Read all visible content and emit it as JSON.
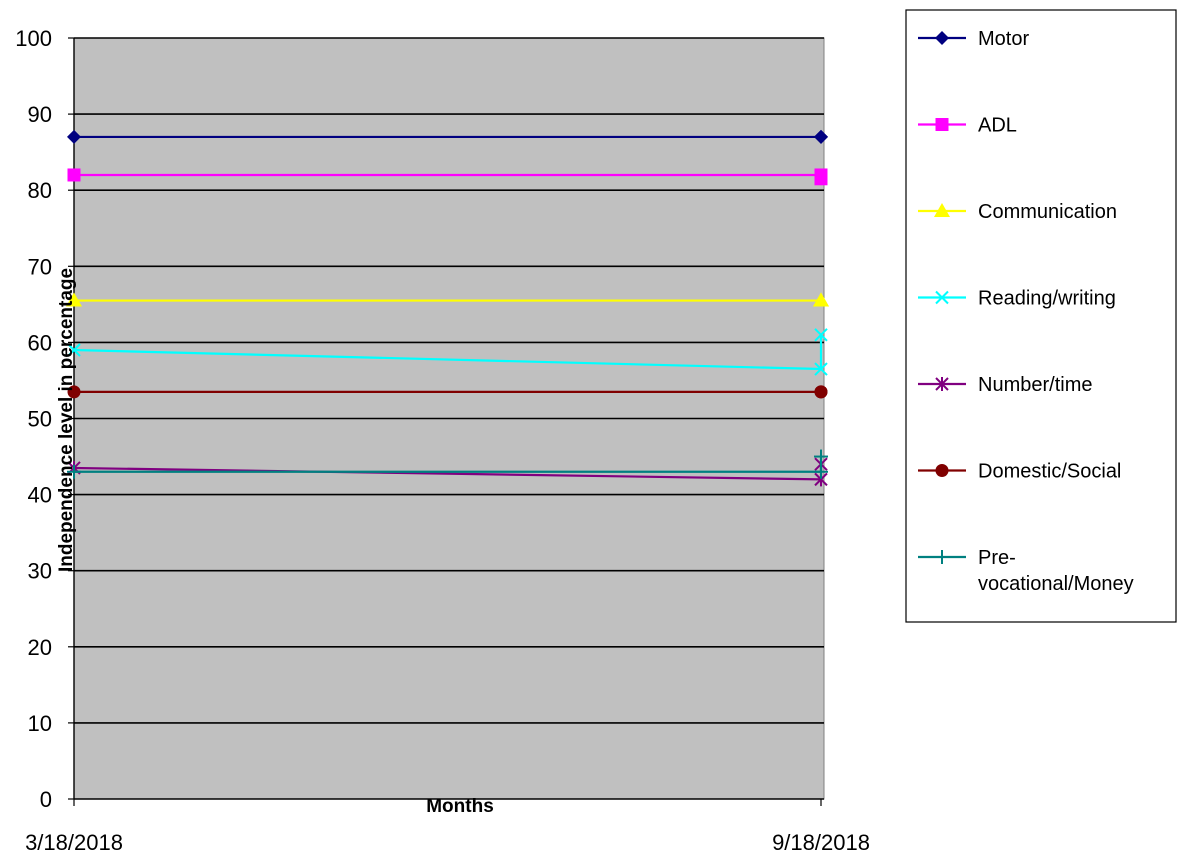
{
  "chart_data": {
    "type": "line",
    "title": "",
    "xlabel": "Months",
    "ylabel": "Independence level in percentage",
    "ylim": [
      0,
      100
    ],
    "y_ticks": [
      "0",
      "10",
      "20",
      "30",
      "40",
      "50",
      "60",
      "70",
      "80",
      "90",
      "100"
    ],
    "categories": [
      "3/18/2018",
      "9/18/2018"
    ],
    "grid": true,
    "legend_position": "right",
    "plot_background": "#C0C0C0",
    "series": [
      {
        "name": "Motor",
        "color": "#000080",
        "marker": "diamond",
        "points": [
          {
            "x": "3/18/2018",
            "y": 87
          },
          {
            "x": "9/18/2018",
            "y": 87
          },
          {
            "x": "9/18/2018",
            "y": 87
          }
        ]
      },
      {
        "name": "ADL",
        "color": "#FF00FF",
        "marker": "square",
        "points": [
          {
            "x": "3/18/2018",
            "y": 82
          },
          {
            "x": "9/18/2018",
            "y": 82
          },
          {
            "x": "9/18/2018",
            "y": 81.5
          }
        ]
      },
      {
        "name": "Communication",
        "color": "#FFFF00",
        "marker": "triangle",
        "points": [
          {
            "x": "3/18/2018",
            "y": 65.5
          },
          {
            "x": "9/18/2018",
            "y": 65.5
          },
          {
            "x": "9/18/2018",
            "y": 65.5
          }
        ]
      },
      {
        "name": "Reading/writing",
        "color": "#00FFFF",
        "marker": "x",
        "points": [
          {
            "x": "3/18/2018",
            "y": 59
          },
          {
            "x": "9/18/2018",
            "y": 56.5
          },
          {
            "x": "9/18/2018",
            "y": 61
          }
        ]
      },
      {
        "name": "Number/time",
        "color": "#800080",
        "marker": "star",
        "points": [
          {
            "x": "3/18/2018",
            "y": 43.5
          },
          {
            "x": "9/18/2018",
            "y": 42
          },
          {
            "x": "9/18/2018",
            "y": 44
          }
        ]
      },
      {
        "name": "Domestic/Social",
        "color": "#800000",
        "marker": "circle",
        "points": [
          {
            "x": "3/18/2018",
            "y": 53.5
          },
          {
            "x": "9/18/2018",
            "y": 53.5
          },
          {
            "x": "9/18/2018",
            "y": 53.5
          }
        ]
      },
      {
        "name": "Pre-vocational/Money",
        "legend_lines": [
          "Pre-",
          "vocational/Money"
        ],
        "color": "#008080",
        "marker": "plus",
        "points": [
          {
            "x": "3/18/2018",
            "y": 43
          },
          {
            "x": "9/18/2018",
            "y": 43
          },
          {
            "x": "9/18/2018",
            "y": 45
          }
        ]
      }
    ]
  }
}
